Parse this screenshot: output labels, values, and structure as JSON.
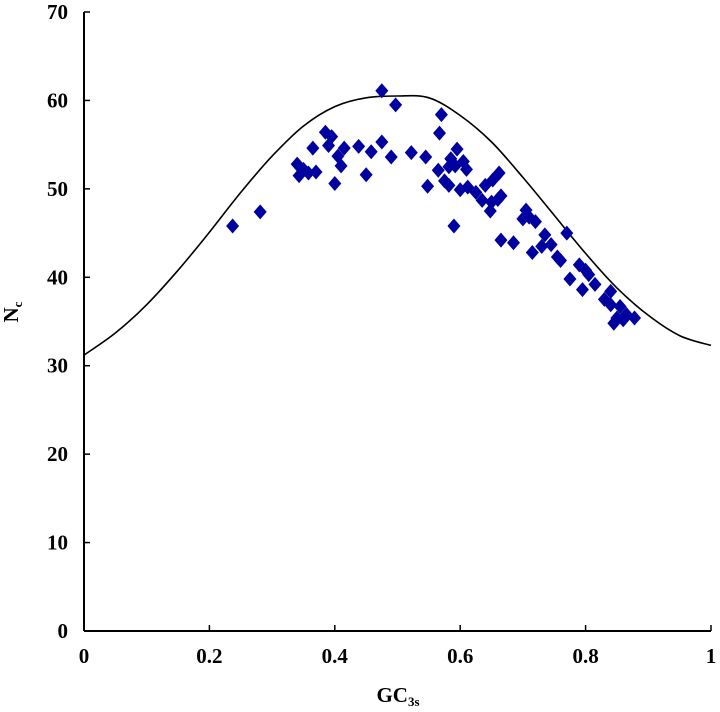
{
  "chart_data": {
    "type": "scatter",
    "xlabel": "GC",
    "xlabel_sub": "3s",
    "ylabel": "N",
    "ylabel_sub": "c",
    "xlim": [
      0,
      1
    ],
    "ylim": [
      0,
      70
    ],
    "x_ticks": [
      "0",
      "0.2",
      "0.4",
      "0.6",
      "0.8",
      "1"
    ],
    "y_ticks": [
      "0",
      "10",
      "20",
      "30",
      "40",
      "50",
      "60",
      "70"
    ],
    "grid": false,
    "marker_color": "#0000a0",
    "curve_color": "#000000",
    "points": [
      [
        0.237,
        45.8
      ],
      [
        0.281,
        47.4
      ],
      [
        0.34,
        52.8
      ],
      [
        0.343,
        51.5
      ],
      [
        0.35,
        52.2
      ],
      [
        0.358,
        51.8
      ],
      [
        0.365,
        54.6
      ],
      [
        0.37,
        51.9
      ],
      [
        0.385,
        56.4
      ],
      [
        0.395,
        55.9
      ],
      [
        0.39,
        54.9
      ],
      [
        0.4,
        50.6
      ],
      [
        0.405,
        53.7
      ],
      [
        0.41,
        52.6
      ],
      [
        0.415,
        54.6
      ],
      [
        0.438,
        54.8
      ],
      [
        0.45,
        51.6
      ],
      [
        0.458,
        54.2
      ],
      [
        0.475,
        55.3
      ],
      [
        0.475,
        61.1
      ],
      [
        0.49,
        53.6
      ],
      [
        0.497,
        59.5
      ],
      [
        0.522,
        54.1
      ],
      [
        0.545,
        53.6
      ],
      [
        0.548,
        50.3
      ],
      [
        0.567,
        56.3
      ],
      [
        0.57,
        58.4
      ],
      [
        0.565,
        52.1
      ],
      [
        0.575,
        50.9
      ],
      [
        0.582,
        50.4
      ],
      [
        0.582,
        52.5
      ],
      [
        0.585,
        53.4
      ],
      [
        0.59,
        45.8
      ],
      [
        0.592,
        52.6
      ],
      [
        0.595,
        54.5
      ],
      [
        0.6,
        49.9
      ],
      [
        0.605,
        53.1
      ],
      [
        0.61,
        52.2
      ],
      [
        0.612,
        50.2
      ],
      [
        0.625,
        49.6
      ],
      [
        0.635,
        48.7
      ],
      [
        0.64,
        50.4
      ],
      [
        0.648,
        47.5
      ],
      [
        0.65,
        48.5
      ],
      [
        0.652,
        51.0
      ],
      [
        0.66,
        48.8
      ],
      [
        0.662,
        51.8
      ],
      [
        0.665,
        49.2
      ],
      [
        0.665,
        44.2
      ],
      [
        0.685,
        43.9
      ],
      [
        0.7,
        46.6
      ],
      [
        0.705,
        47.6
      ],
      [
        0.71,
        46.8
      ],
      [
        0.715,
        42.8
      ],
      [
        0.72,
        46.3
      ],
      [
        0.73,
        43.5
      ],
      [
        0.735,
        44.8
      ],
      [
        0.745,
        43.7
      ],
      [
        0.755,
        42.3
      ],
      [
        0.76,
        41.9
      ],
      [
        0.77,
        45.0
      ],
      [
        0.775,
        39.8
      ],
      [
        0.79,
        41.4
      ],
      [
        0.795,
        38.6
      ],
      [
        0.8,
        40.8
      ],
      [
        0.805,
        40.3
      ],
      [
        0.815,
        39.2
      ],
      [
        0.83,
        37.5
      ],
      [
        0.84,
        36.9
      ],
      [
        0.84,
        38.4
      ],
      [
        0.845,
        34.8
      ],
      [
        0.85,
        35.4
      ],
      [
        0.855,
        36.7
      ],
      [
        0.86,
        35.2
      ],
      [
        0.865,
        35.8
      ],
      [
        0.878,
        35.4
      ]
    ],
    "curve": {
      "x": [
        0,
        0.05,
        0.1,
        0.15,
        0.2,
        0.25,
        0.3,
        0.35,
        0.4,
        0.45,
        0.5,
        0.55,
        0.6,
        0.65,
        0.7,
        0.75,
        0.8,
        0.85,
        0.9,
        0.95,
        1.0
      ],
      "y": [
        31.2,
        33.7,
        36.9,
        40.8,
        45.1,
        49.6,
        53.7,
        57.1,
        59.3,
        60.3,
        60.5,
        60.3,
        58.3,
        55.3,
        51.3,
        47.0,
        42.7,
        38.8,
        35.7,
        33.4,
        32.3
      ]
    }
  }
}
